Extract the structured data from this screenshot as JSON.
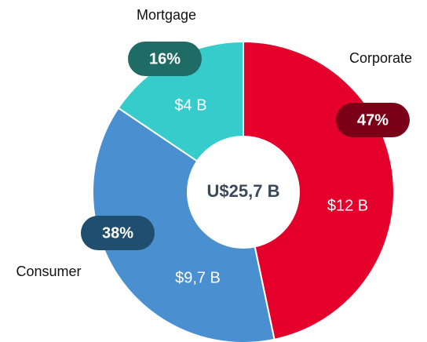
{
  "chart_data": {
    "type": "donut",
    "categories": [
      "Corporate",
      "Consumer",
      "Mortgage"
    ],
    "values": [
      12,
      9.7,
      4
    ],
    "value_labels": [
      "$12 B",
      "$9,7 B",
      "$4 B"
    ],
    "percentages": [
      47,
      38,
      16
    ],
    "percentage_labels": [
      "47%",
      "38%",
      "16%"
    ],
    "colors": [
      "#e4002b",
      "#4a90d0",
      "#36cccc"
    ],
    "badge_colors": [
      "#7a0018",
      "#1f4e6e",
      "#1f6b66"
    ],
    "total": 25.7,
    "total_label": "U$25,7 B"
  }
}
